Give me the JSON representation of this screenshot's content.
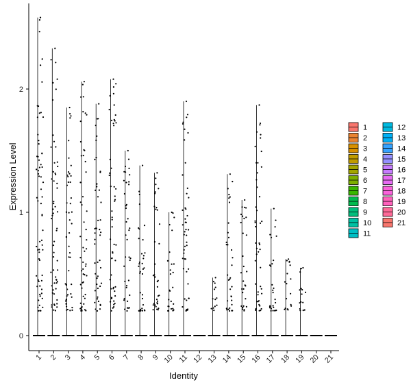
{
  "chart_data": {
    "type": "violin",
    "xlabel": "Identity",
    "ylabel": "Expression Level",
    "ylim": [
      -0.1,
      2.7
    ],
    "yticks": [
      0,
      1,
      2
    ],
    "categories": [
      "1",
      "2",
      "3",
      "4",
      "5",
      "6",
      "7",
      "8",
      "9",
      "10",
      "11",
      "12",
      "13",
      "14",
      "15",
      "16",
      "17",
      "18",
      "19",
      "20",
      "21"
    ],
    "max_values": [
      2.58,
      2.33,
      1.85,
      2.06,
      1.88,
      2.08,
      1.5,
      1.38,
      1.32,
      1.0,
      1.9,
      0.0,
      0.47,
      1.31,
      1.1,
      1.87,
      1.03,
      0.62,
      0.55,
      0.0,
      0.0
    ],
    "legend": {
      "placement": "right",
      "columns": 2,
      "entries": [
        "1",
        "2",
        "3",
        "4",
        "5",
        "6",
        "7",
        "8",
        "9",
        "10",
        "11",
        "12",
        "13",
        "14",
        "15",
        "16",
        "17",
        "18",
        "19",
        "20",
        "21"
      ]
    },
    "colors": [
      "#F8766D",
      "#EA8331",
      "#D89000",
      "#C09B00",
      "#A3A500",
      "#7CAE00",
      "#39B600",
      "#00BB4E",
      "#00BF7D",
      "#00C1A3",
      "#00BFC4",
      "#00BAE0",
      "#00B0F6",
      "#35A2FF",
      "#9590FF",
      "#C77CFF",
      "#E76BF3",
      "#FA62DB",
      "#FF62BC",
      "#FF6A98",
      "#F8766D"
    ],
    "grid": false
  }
}
